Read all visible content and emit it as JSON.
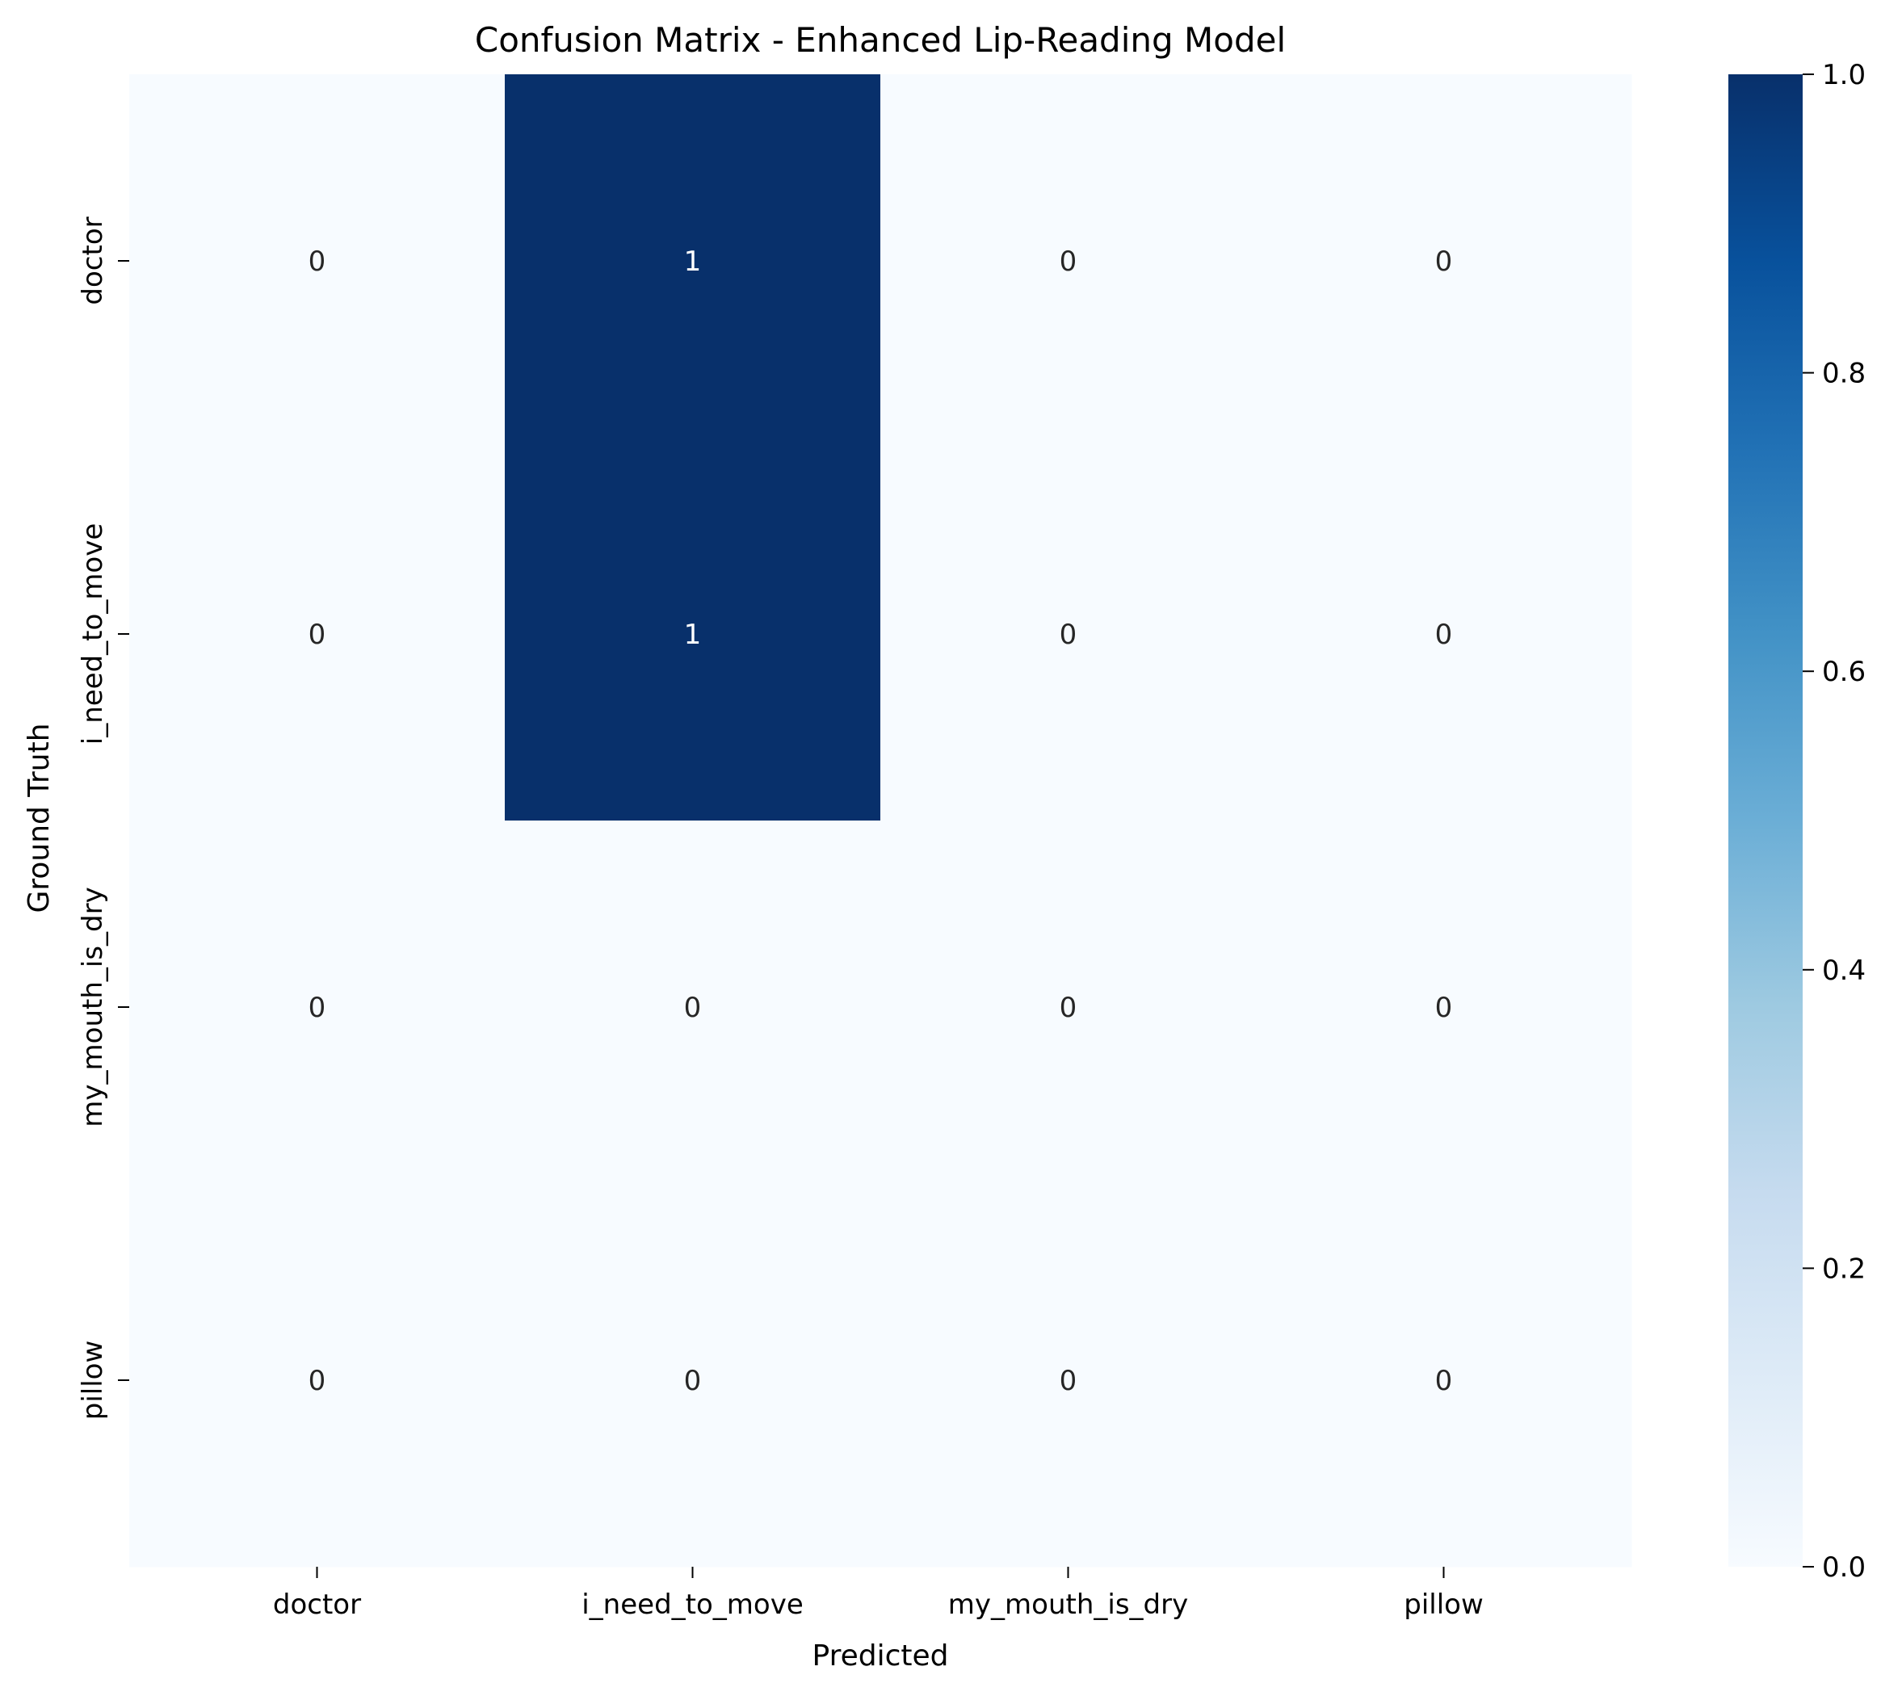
{
  "chart_data": {
    "type": "heatmap",
    "title": "Confusion Matrix - Enhanced Lip-Reading Model",
    "xlabel": "Predicted",
    "ylabel": "Ground Truth",
    "x_categories": [
      "doctor",
      "i_need_to_move",
      "my_mouth_is_dry",
      "pillow"
    ],
    "y_categories": [
      "doctor",
      "i_need_to_move",
      "my_mouth_is_dry",
      "pillow"
    ],
    "values": [
      [
        0,
        1,
        0,
        0
      ],
      [
        0,
        1,
        0,
        0
      ],
      [
        0,
        0,
        0,
        0
      ],
      [
        0,
        0,
        0,
        0
      ]
    ],
    "colormap": "Blues",
    "color_min": "#f7fbff",
    "color_max": "#08306b",
    "colorbar": {
      "range": [
        0.0,
        1.0
      ],
      "ticks": [
        "0.0",
        "0.2",
        "0.4",
        "0.6",
        "0.8",
        "1.0"
      ]
    },
    "annotations": true
  }
}
